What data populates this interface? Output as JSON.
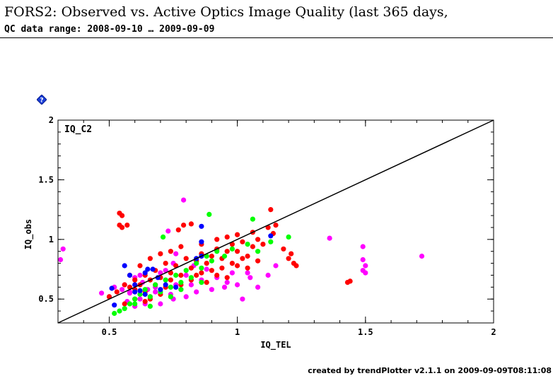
{
  "header": {
    "title": "FORS2: Observed vs. Active Optics Image Quality (last 365 days,",
    "subtitle": "QC data range: 2008-09-10 … 2009-09-09"
  },
  "footer": {
    "text": "created by trendPlotter v2.1.1 on 2009-09-09T08:11:08"
  },
  "colors": {
    "red": "#ff0000",
    "magenta": "#ff00ff",
    "green": "#00ff00",
    "blue": "#0000ff",
    "diagonal": "#000000"
  },
  "chart_data": {
    "type": "scatter",
    "title": "",
    "panel_label": "IQ_C2",
    "xlabel": "IQ_TEL",
    "ylabel": "IQ_obs",
    "xlim": [
      0.3,
      2.0
    ],
    "ylim": [
      0.3,
      2.0
    ],
    "xticks": [
      "0.5",
      "1",
      "1.5",
      "2"
    ],
    "yticks": [
      "0.5",
      "1",
      "1.5",
      "2"
    ],
    "reference_line": "y = x",
    "series": [
      {
        "color": "#ff00ff",
        "points": [
          [
            0.32,
            0.92
          ],
          [
            0.31,
            0.83
          ],
          [
            0.47,
            0.55
          ],
          [
            0.5,
            0.52
          ],
          [
            0.52,
            0.6
          ],
          [
            0.55,
            0.58
          ],
          [
            0.56,
            0.62
          ],
          [
            0.58,
            0.55
          ],
          [
            0.6,
            0.68
          ],
          [
            0.62,
            0.7
          ],
          [
            0.63,
            0.64
          ],
          [
            0.65,
            0.58
          ],
          [
            0.66,
            0.52
          ],
          [
            0.68,
            0.6
          ],
          [
            0.7,
            0.72
          ],
          [
            0.72,
            0.66
          ],
          [
            0.74,
            0.54
          ],
          [
            0.75,
            0.8
          ],
          [
            0.76,
            0.62
          ],
          [
            0.78,
            0.58
          ],
          [
            0.79,
            1.33
          ],
          [
            0.8,
            0.7
          ],
          [
            0.82,
            0.62
          ],
          [
            0.84,
            0.56
          ],
          [
            0.86,
            0.66
          ],
          [
            0.88,
            0.75
          ],
          [
            0.9,
            0.58
          ],
          [
            0.92,
            0.68
          ],
          [
            0.95,
            0.6
          ],
          [
            0.98,
            0.72
          ],
          [
            1.0,
            0.62
          ],
          [
            1.02,
            0.5
          ],
          [
            1.05,
            0.68
          ],
          [
            1.08,
            0.6
          ],
          [
            1.12,
            0.7
          ],
          [
            1.15,
            0.78
          ],
          [
            1.36,
            1.01
          ],
          [
            1.49,
            0.94
          ],
          [
            1.49,
            0.83
          ],
          [
            1.5,
            0.78
          ],
          [
            1.49,
            0.74
          ],
          [
            1.5,
            0.72
          ],
          [
            1.72,
            0.86
          ],
          [
            0.57,
            0.48
          ],
          [
            0.6,
            0.44
          ],
          [
            0.64,
            0.46
          ],
          [
            0.7,
            0.46
          ],
          [
            0.75,
            0.5
          ],
          [
            0.62,
            0.5
          ],
          [
            0.58,
            0.56
          ],
          [
            0.68,
            0.56
          ],
          [
            0.72,
            0.74
          ],
          [
            0.76,
            0.88
          ],
          [
            0.8,
            0.52
          ],
          [
            0.83,
            0.78
          ],
          [
            0.73,
            1.07
          ],
          [
            0.96,
            0.64
          ],
          [
            1.04,
            0.72
          ]
        ]
      },
      {
        "color": "#ff0000",
        "points": [
          [
            0.5,
            0.52
          ],
          [
            0.53,
            0.56
          ],
          [
            0.54,
            1.22
          ],
          [
            0.55,
            1.2
          ],
          [
            0.54,
            1.12
          ],
          [
            0.55,
            1.1
          ],
          [
            0.57,
            1.12
          ],
          [
            0.56,
            0.62
          ],
          [
            0.58,
            0.6
          ],
          [
            0.6,
            0.66
          ],
          [
            0.62,
            0.62
          ],
          [
            0.64,
            0.7
          ],
          [
            0.66,
            0.66
          ],
          [
            0.68,
            0.74
          ],
          [
            0.7,
            0.68
          ],
          [
            0.72,
            0.8
          ],
          [
            0.74,
            0.72
          ],
          [
            0.76,
            0.78
          ],
          [
            0.77,
            1.08
          ],
          [
            0.79,
            1.12
          ],
          [
            0.82,
            1.13
          ],
          [
            0.78,
            0.7
          ],
          [
            0.8,
            0.84
          ],
          [
            0.82,
            0.76
          ],
          [
            0.84,
            0.82
          ],
          [
            0.86,
            0.88
          ],
          [
            0.88,
            0.8
          ],
          [
            0.9,
            0.86
          ],
          [
            0.92,
            0.92
          ],
          [
            0.94,
            0.84
          ],
          [
            0.96,
            0.9
          ],
          [
            0.98,
            0.96
          ],
          [
            1.0,
            0.9
          ],
          [
            1.02,
            0.98
          ],
          [
            1.04,
            0.86
          ],
          [
            1.06,
            0.94
          ],
          [
            1.08,
            1.0
          ],
          [
            1.1,
            0.96
          ],
          [
            1.12,
            1.1
          ],
          [
            1.14,
            1.05
          ],
          [
            1.15,
            1.12
          ],
          [
            1.13,
            1.25
          ],
          [
            1.18,
            0.92
          ],
          [
            1.2,
            0.84
          ],
          [
            1.22,
            0.8
          ],
          [
            1.23,
            0.78
          ],
          [
            1.21,
            0.88
          ],
          [
            1.44,
            0.65
          ],
          [
            1.43,
            0.64
          ],
          [
            0.6,
            0.58
          ],
          [
            0.64,
            0.56
          ],
          [
            0.68,
            0.62
          ],
          [
            0.72,
            0.6
          ],
          [
            0.74,
            0.66
          ],
          [
            0.78,
            0.62
          ],
          [
            0.82,
            0.66
          ],
          [
            0.86,
            0.72
          ],
          [
            0.9,
            0.74
          ],
          [
            0.94,
            0.76
          ],
          [
            0.98,
            0.8
          ],
          [
            1.02,
            0.84
          ],
          [
            0.66,
            0.5
          ],
          [
            0.7,
            0.54
          ],
          [
            0.58,
            0.7
          ],
          [
            0.62,
            0.78
          ],
          [
            0.66,
            0.84
          ],
          [
            0.7,
            0.88
          ],
          [
            0.74,
            0.9
          ],
          [
            0.78,
            0.94
          ],
          [
            0.86,
            0.96
          ],
          [
            0.92,
            1.0
          ],
          [
            0.96,
            1.02
          ],
          [
            1.0,
            1.04
          ],
          [
            1.06,
            1.06
          ],
          [
            0.84,
            0.7
          ],
          [
            0.88,
            0.64
          ],
          [
            0.92,
            0.7
          ],
          [
            0.96,
            0.68
          ],
          [
            1.0,
            0.78
          ],
          [
            1.04,
            0.76
          ],
          [
            1.08,
            0.82
          ],
          [
            0.56,
            0.46
          ],
          [
            0.6,
            0.5
          ],
          [
            0.64,
            0.48
          ]
        ]
      },
      {
        "color": "#00ff00",
        "points": [
          [
            0.52,
            0.38
          ],
          [
            0.54,
            0.4
          ],
          [
            0.56,
            0.42
          ],
          [
            0.58,
            0.46
          ],
          [
            0.6,
            0.5
          ],
          [
            0.62,
            0.54
          ],
          [
            0.64,
            0.58
          ],
          [
            0.66,
            0.52
          ],
          [
            0.68,
            0.62
          ],
          [
            0.7,
            0.56
          ],
          [
            0.72,
            0.66
          ],
          [
            0.74,
            0.6
          ],
          [
            0.76,
            0.7
          ],
          [
            0.78,
            0.64
          ],
          [
            0.8,
            0.74
          ],
          [
            0.82,
            0.68
          ],
          [
            0.84,
            0.8
          ],
          [
            0.86,
            0.76
          ],
          [
            0.88,
            0.86
          ],
          [
            0.9,
            0.82
          ],
          [
            0.92,
            0.9
          ],
          [
            0.95,
            0.86
          ],
          [
            0.98,
            0.92
          ],
          [
            1.04,
            0.96
          ],
          [
            1.08,
            0.9
          ],
          [
            1.13,
            0.98
          ],
          [
            1.2,
            1.02
          ],
          [
            0.89,
            1.21
          ],
          [
            1.06,
            1.17
          ],
          [
            0.71,
            1.02
          ],
          [
            0.78,
            0.58
          ],
          [
            0.66,
            0.44
          ],
          [
            0.6,
            0.46
          ],
          [
            0.74,
            0.52
          ],
          [
            0.86,
            0.64
          ]
        ]
      },
      {
        "color": "#0000ff",
        "points": [
          [
            0.51,
            0.59
          ],
          [
            0.52,
            0.45
          ],
          [
            0.56,
            0.78
          ],
          [
            0.58,
            0.7
          ],
          [
            0.6,
            0.62
          ],
          [
            0.62,
            0.57
          ],
          [
            0.64,
            0.72
          ],
          [
            0.65,
            0.75
          ],
          [
            0.67,
            0.75
          ],
          [
            0.69,
            0.68
          ],
          [
            0.7,
            0.58
          ],
          [
            0.72,
            0.62
          ],
          [
            0.76,
            0.6
          ],
          [
            0.84,
            0.84
          ],
          [
            0.86,
            0.86
          ],
          [
            0.86,
            0.98
          ],
          [
            0.86,
            1.11
          ],
          [
            1.13,
            1.03
          ],
          [
            0.6,
            0.56
          ],
          [
            0.64,
            0.54
          ]
        ]
      }
    ]
  }
}
